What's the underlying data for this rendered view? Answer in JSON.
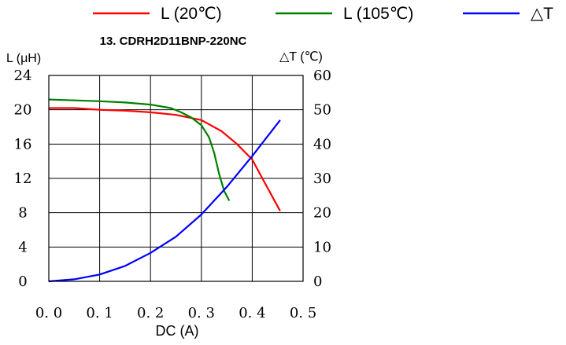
{
  "chart_data": {
    "type": "line",
    "title": "13. CDRH2D11BNP-220NC",
    "xlabel": "DC (A)",
    "ylabel_left": "L (μH)",
    "ylabel_right": "△T (℃)",
    "xlim": [
      0,
      0.5
    ],
    "ylim_left": [
      0,
      24
    ],
    "ylim_right": [
      0,
      60
    ],
    "x_ticks": [
      "0. 0",
      "0. 1",
      "0. 2",
      "0. 3",
      "0. 4",
      "0. 5"
    ],
    "y_ticks_left": [
      "0",
      "4",
      "8",
      "12",
      "16",
      "20",
      "24"
    ],
    "y_ticks_right": [
      "0",
      "10",
      "20",
      "30",
      "40",
      "50",
      "60"
    ],
    "grid": true,
    "legend_position": "top",
    "series": [
      {
        "name": "L (20℃)",
        "color": "#ff0000",
        "axis": "left",
        "points": [
          [
            0,
            20.2
          ],
          [
            0.05,
            20.2
          ],
          [
            0.1,
            20.0
          ],
          [
            0.15,
            19.9
          ],
          [
            0.2,
            19.7
          ],
          [
            0.25,
            19.4
          ],
          [
            0.3,
            18.8
          ],
          [
            0.34,
            17.5
          ],
          [
            0.37,
            16.0
          ],
          [
            0.4,
            14.2
          ],
          [
            0.42,
            12.0
          ],
          [
            0.455,
            8.2
          ]
        ]
      },
      {
        "name": "L (105℃)",
        "color": "#008000",
        "axis": "left",
        "points": [
          [
            0,
            21.2
          ],
          [
            0.05,
            21.1
          ],
          [
            0.1,
            21.0
          ],
          [
            0.15,
            20.85
          ],
          [
            0.2,
            20.6
          ],
          [
            0.24,
            20.2
          ],
          [
            0.26,
            19.7
          ],
          [
            0.28,
            19.1
          ],
          [
            0.3,
            18.2
          ],
          [
            0.315,
            16.8
          ],
          [
            0.325,
            15.0
          ],
          [
            0.335,
            12.5
          ],
          [
            0.345,
            10.5
          ],
          [
            0.355,
            9.4
          ]
        ]
      },
      {
        "name": "△T",
        "color": "#0000ff",
        "axis": "right",
        "points": [
          [
            0,
            0
          ],
          [
            0.05,
            0.6
          ],
          [
            0.1,
            2.0
          ],
          [
            0.15,
            4.5
          ],
          [
            0.2,
            8.3
          ],
          [
            0.25,
            13.0
          ],
          [
            0.3,
            19.5
          ],
          [
            0.35,
            27.5
          ],
          [
            0.4,
            36.5
          ],
          [
            0.455,
            47.0
          ]
        ]
      }
    ]
  }
}
